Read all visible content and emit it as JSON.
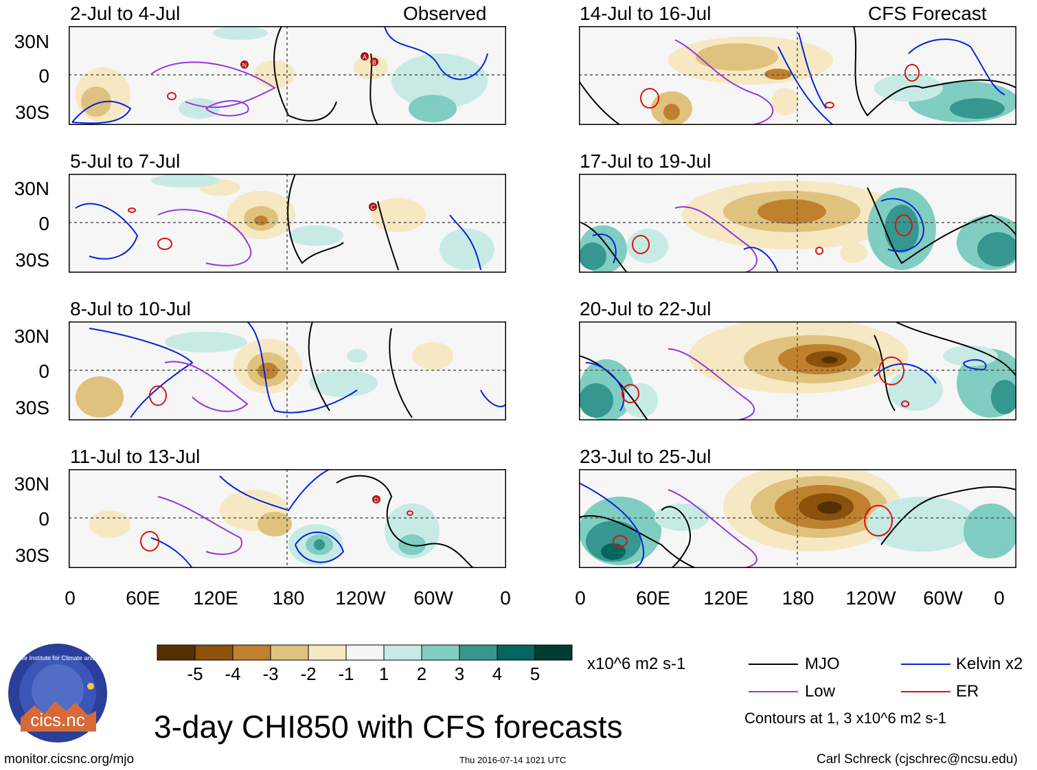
{
  "observed_label": "Observed",
  "forecast_label": "CFS Forecast",
  "panels_left": [
    {
      "title": "2-Jul to 4-Jul"
    },
    {
      "title": "5-Jul to 7-Jul"
    },
    {
      "title": "8-Jul to 10-Jul"
    },
    {
      "title": "11-Jul to 13-Jul"
    }
  ],
  "panels_right": [
    {
      "title": "14-Jul to 16-Jul"
    },
    {
      "title": "17-Jul to 19-Jul"
    },
    {
      "title": "20-Jul to 22-Jul"
    },
    {
      "title": "23-Jul to 25-Jul"
    }
  ],
  "y_labels": [
    "30N",
    "0",
    "30S"
  ],
  "x_labels": [
    "0",
    "60E",
    "120E",
    "180",
    "120W",
    "60W",
    "0"
  ],
  "storm_markers_observed": [
    "N",
    "A",
    "B",
    "C",
    "D"
  ],
  "colorbar": {
    "labels": [
      "-5",
      "-4",
      "-3",
      "-2",
      "-1",
      "1",
      "2",
      "3",
      "4",
      "5"
    ],
    "colors": [
      "#543005",
      "#8c510a",
      "#bf812d",
      "#dfc27d",
      "#f6e8c3",
      "#f5f5f5",
      "#c7eae5",
      "#80cdc1",
      "#35978f",
      "#01665e",
      "#003c30"
    ],
    "units": "x10^6 m2 s-1"
  },
  "legend": {
    "mjo": {
      "label": "MJO",
      "color": "#000000"
    },
    "kelvin": {
      "label": "Kelvin x2",
      "color": "#0022dd"
    },
    "low": {
      "label": "Low",
      "color": "#9933dd"
    },
    "er": {
      "label": "ER",
      "color": "#dd1111"
    },
    "contours_note": "Contours at 1, 3 x10^6 m2 s-1"
  },
  "title": "3-day CHI850 with CFS forecasts",
  "logo_text": "cics.nc",
  "logo_ring_text": "Cooperative Institute for Climate and Satellites",
  "footer_left": "monitor.cicsnc.org/mjo",
  "footer_center": "Thu 2016-07-14 1021 UTC",
  "footer_right": "Carl Schreck (cjschrec@ncsu.edu)"
}
